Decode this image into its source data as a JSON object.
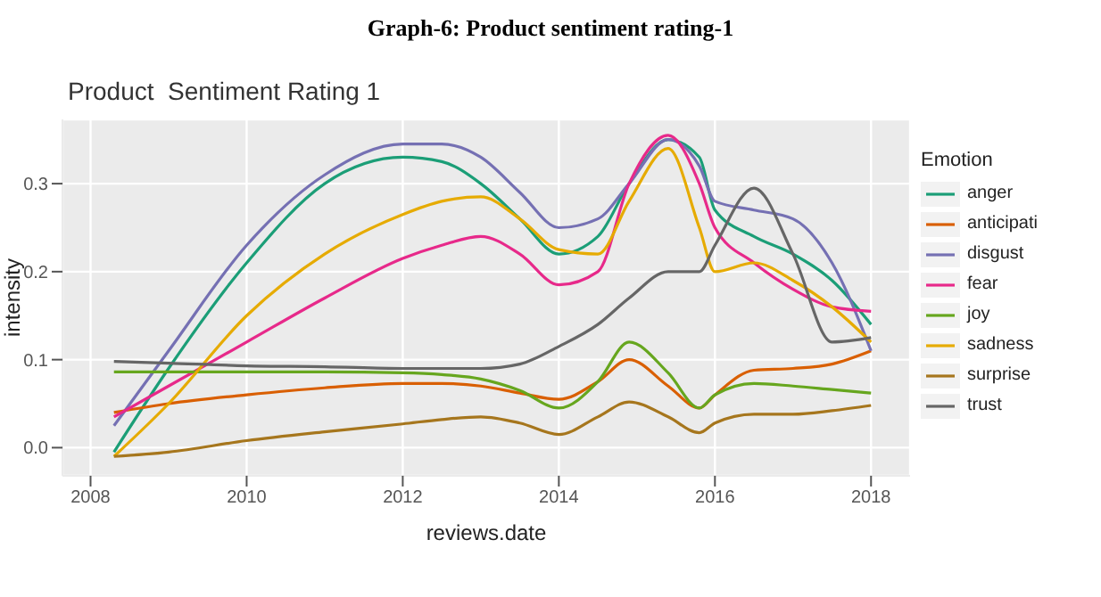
{
  "chart_data": {
    "type": "line",
    "title": "Graph-6: Product sentiment rating-1",
    "subtitle": "Product  Sentiment Rating 1",
    "xlabel": "reviews.date",
    "ylabel": "intensity",
    "legend_title": "Emotion",
    "x": [
      2008.3,
      2009,
      2010,
      2011,
      2012,
      2012.5,
      2013,
      2013.5,
      2014,
      2014.5,
      2014.9,
      2015.4,
      2015.8,
      2016,
      2016.5,
      2017,
      2017.5,
      2018
    ],
    "series": [
      {
        "name": "anger",
        "color": "#1b9e77",
        "values": [
          -0.005,
          0.09,
          0.21,
          0.3,
          0.33,
          0.325,
          0.3,
          0.26,
          0.22,
          0.24,
          0.3,
          0.35,
          0.33,
          0.27,
          0.24,
          0.22,
          0.19,
          0.14
        ]
      },
      {
        "name": "anticipati",
        "color": "#d95f02",
        "values": [
          0.04,
          0.05,
          0.06,
          0.068,
          0.073,
          0.073,
          0.07,
          0.062,
          0.055,
          0.075,
          0.1,
          0.07,
          0.045,
          0.06,
          0.088,
          0.09,
          0.095,
          0.11
        ]
      },
      {
        "name": "disgust",
        "color": "#7570b3",
        "values": [
          0.025,
          0.11,
          0.23,
          0.31,
          0.345,
          0.345,
          0.33,
          0.29,
          0.25,
          0.26,
          0.3,
          0.35,
          0.32,
          0.28,
          0.27,
          0.26,
          0.21,
          0.11
        ]
      },
      {
        "name": "fear",
        "color": "#e7298a",
        "values": [
          0.035,
          0.07,
          0.12,
          0.17,
          0.215,
          0.23,
          0.24,
          0.22,
          0.185,
          0.2,
          0.3,
          0.355,
          0.3,
          0.25,
          0.21,
          0.18,
          0.16,
          0.155
        ]
      },
      {
        "name": "joy",
        "color": "#66a61e",
        "values": [
          0.086,
          0.086,
          0.086,
          0.086,
          0.085,
          0.083,
          0.078,
          0.065,
          0.045,
          0.075,
          0.12,
          0.085,
          0.045,
          0.06,
          0.073,
          0.07,
          0.066,
          0.062
        ]
      },
      {
        "name": "sadness",
        "color": "#e6ab02",
        "values": [
          -0.01,
          0.05,
          0.15,
          0.22,
          0.265,
          0.28,
          0.285,
          0.26,
          0.225,
          0.22,
          0.28,
          0.34,
          0.25,
          0.2,
          0.21,
          0.19,
          0.16,
          0.12
        ]
      },
      {
        "name": "surprise",
        "color": "#a6761d",
        "values": [
          -0.01,
          -0.005,
          0.008,
          0.018,
          0.027,
          0.032,
          0.035,
          0.028,
          0.015,
          0.035,
          0.052,
          0.035,
          0.017,
          0.028,
          0.038,
          0.038,
          0.042,
          0.048
        ]
      },
      {
        "name": "trust",
        "color": "#666666",
        "values": [
          0.098,
          0.096,
          0.093,
          0.092,
          0.09,
          0.09,
          0.09,
          0.095,
          0.115,
          0.14,
          0.17,
          0.2,
          0.2,
          0.23,
          0.295,
          0.22,
          0.12,
          0.125
        ]
      }
    ],
    "xlim": [
      2007.64,
      2018.5
    ],
    "xticks": [
      2008,
      2010,
      2012,
      2014,
      2016,
      2018
    ],
    "ylim": [
      -0.032,
      0.373
    ],
    "yticks": [
      {
        "value": 0,
        "label": "0.0"
      },
      {
        "value": 0.1,
        "label": "0.1"
      },
      {
        "value": 0.2,
        "label": "0.2"
      },
      {
        "value": 0.3,
        "label": "0.3"
      }
    ],
    "grid": true,
    "legend": "right",
    "marker": "none",
    "line_style": "solid"
  }
}
